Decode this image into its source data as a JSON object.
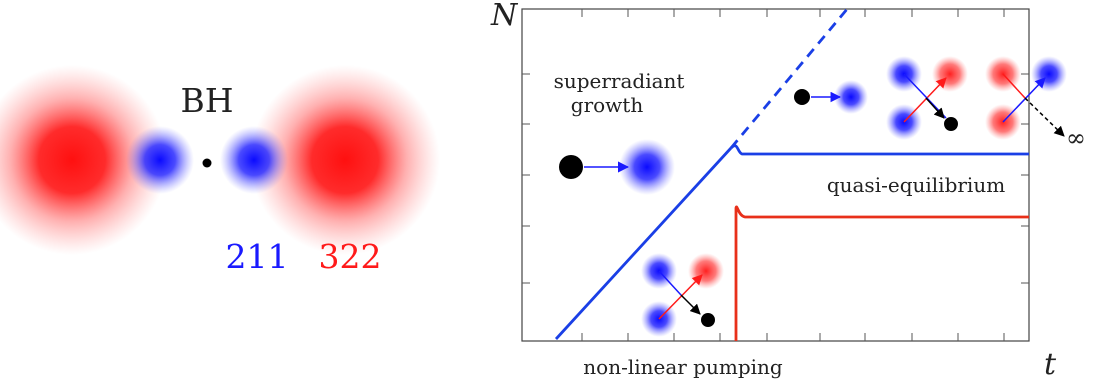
{
  "left_panel": {
    "bh_label": "BH",
    "mode_211": "211",
    "mode_322": "322"
  },
  "plot": {
    "y_axis_label": "N",
    "x_axis_label": "t",
    "label_superradiant_line1": "superradiant",
    "label_superradiant_line2": "growth",
    "label_quasi_equilibrium": "quasi-equilibrium",
    "label_nonlinear_pumping": "non-linear pumping",
    "label_infinity": "∞"
  },
  "colors": {
    "red_cloud": "#ff1a1a",
    "blue_cloud": "#1a1aff",
    "blue_curve": "#1a3fe6",
    "red_curve": "#e8301a",
    "black": "#000000"
  }
}
